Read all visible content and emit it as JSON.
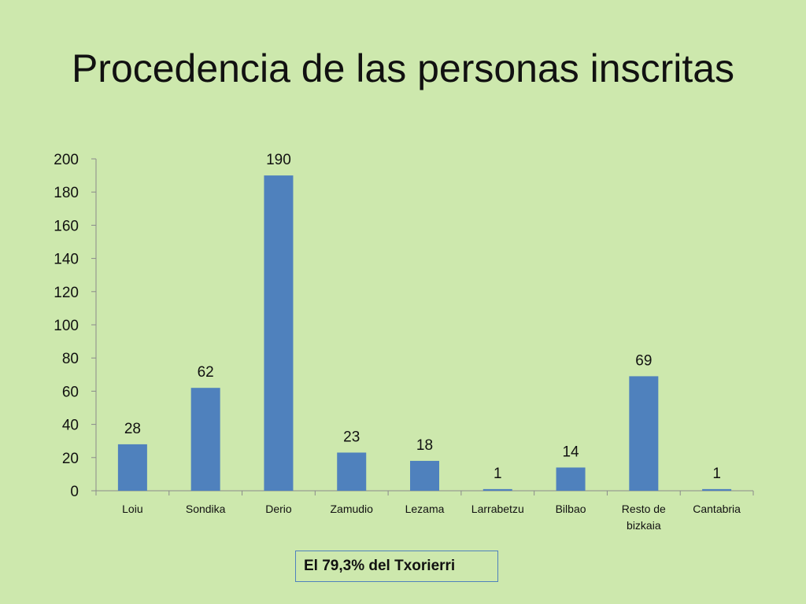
{
  "slide": {
    "title": "Procedencia de las personas inscritas",
    "note": "El 79,3% del Txorierri"
  },
  "chart_data": {
    "type": "bar",
    "categories": [
      "Loiu",
      "Sondika",
      "Derio",
      "Zamudio",
      "Lezama",
      "Larrabetzu",
      "Bilbao",
      "Resto de bizkaia",
      "Cantabria"
    ],
    "category_lines": [
      [
        "Loiu"
      ],
      [
        "Sondika"
      ],
      [
        "Derio"
      ],
      [
        "Zamudio"
      ],
      [
        "Lezama"
      ],
      [
        "Larrabetzu"
      ],
      [
        "Bilbao"
      ],
      [
        "Resto de",
        "bizkaia"
      ],
      [
        "Cantabria"
      ]
    ],
    "values": [
      28,
      62,
      190,
      23,
      18,
      1,
      14,
      69,
      1
    ],
    "data_labels": [
      "28",
      "62",
      "190",
      "23",
      "18",
      "1",
      "14",
      "69",
      "1"
    ],
    "ylim": [
      0,
      200
    ],
    "yticks": [
      0,
      20,
      40,
      60,
      80,
      100,
      120,
      140,
      160,
      180,
      200
    ],
    "grid": false,
    "legend": "none",
    "bar_color": "#4f81bd",
    "title": "",
    "xlabel": "",
    "ylabel": ""
  }
}
